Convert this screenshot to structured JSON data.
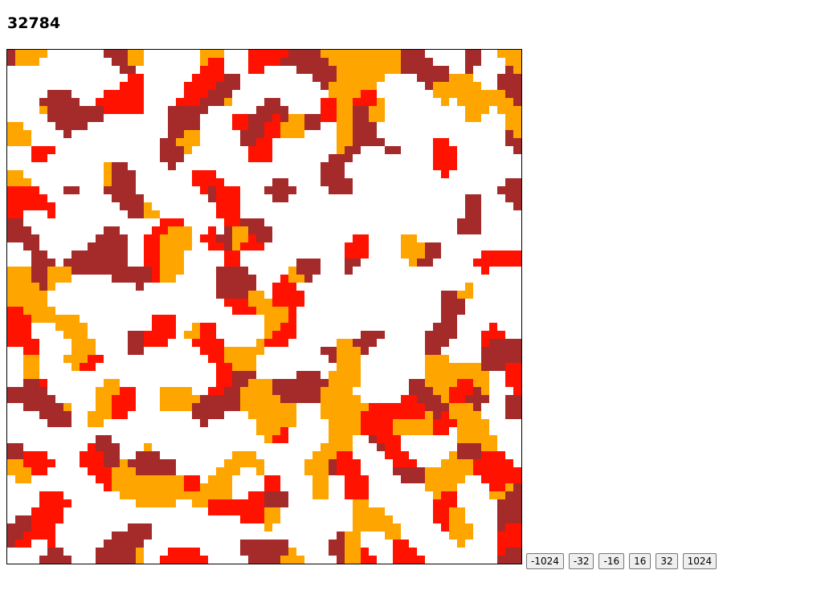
{
  "counter": "32784",
  "canvas": {
    "colors": {
      "background": "#ffffff",
      "red": "#ff1200",
      "brown": "#a52a2a",
      "orange": "#ffa500"
    }
  },
  "controls": {
    "buttons": [
      "-1024",
      "-32",
      "-16",
      "16",
      "32",
      "1024"
    ]
  }
}
